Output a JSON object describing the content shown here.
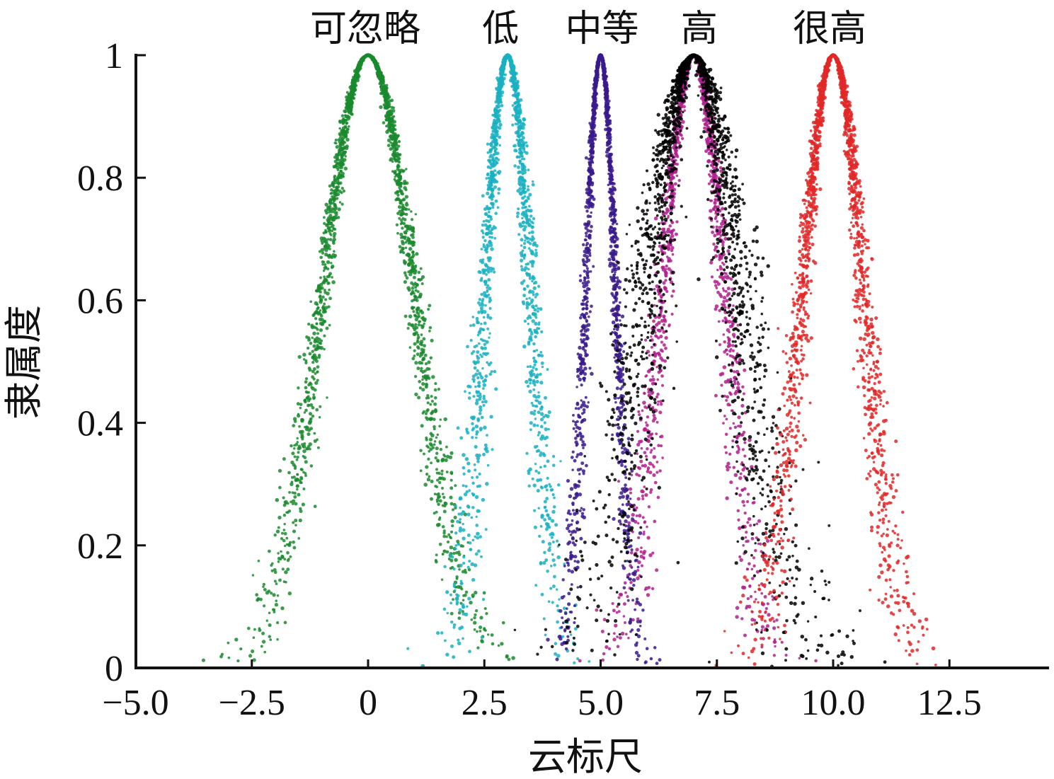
{
  "chart_data": {
    "type": "scatter",
    "title": "",
    "xlabel": "云标尺",
    "ylabel": "隶属度",
    "xlim": [
      -5.0,
      14.5
    ],
    "ylim": [
      0,
      1
    ],
    "x_ticks": [
      -5.0,
      -2.5,
      0,
      2.5,
      5.0,
      7.5,
      10.0,
      12.5
    ],
    "x_tick_labels": [
      "−5.0",
      "−2.5",
      "0",
      "2.5",
      "5.0",
      "7.5",
      "10.0",
      "12.5"
    ],
    "y_ticks": [
      0,
      0.2,
      0.4,
      0.6,
      0.8,
      1
    ],
    "y_tick_labels": [
      "0",
      "0.2",
      "0.4",
      "0.6",
      "0.8",
      "1"
    ],
    "grid": false,
    "legend": "none",
    "series": [
      {
        "name": "可忽略",
        "label_x": 0.0,
        "Ex": 0.0,
        "En": 1.0,
        "He": 0.1,
        "color": "#1a8a2e",
        "drops": 2200
      },
      {
        "name": "低",
        "label_x": 3.0,
        "Ex": 3.0,
        "En": 0.5,
        "He": 0.1,
        "color": "#1ab0c2",
        "drops": 1600
      },
      {
        "name": "中等",
        "label_x": 5.0,
        "Ex": 5.0,
        "En": 0.33,
        "He": 0.05,
        "color": "#3a1a8c",
        "drops": 1600
      },
      {
        "name": "",
        "Ex": 7.0,
        "En": 0.67,
        "He": 0.1,
        "color": "#b0208e",
        "drops": 1600
      },
      {
        "name": "高",
        "label_x": 7.0,
        "Ex": 7.0,
        "En": 1.0,
        "He": 0.25,
        "color": "#000000",
        "drops": 2000
      },
      {
        "name": "很高",
        "label_x": 10.0,
        "Ex": 10.0,
        "En": 0.67,
        "He": 0.1,
        "color": "#e02828",
        "drops": 2000
      }
    ]
  }
}
